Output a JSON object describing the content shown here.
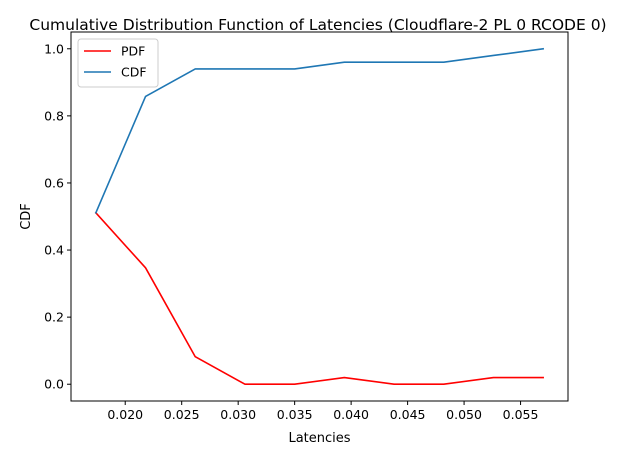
{
  "chart_data": {
    "type": "line",
    "title": "Cumulative Distribution Function of Latencies (Cloudflare-2 PL 0 RCODE 0)",
    "xlabel": "Latencies",
    "ylabel": "CDF",
    "xlim": [
      0.0152,
      0.0592
    ],
    "ylim": [
      -0.05,
      1.05
    ],
    "xticks": [
      0.02,
      0.025,
      0.03,
      0.035,
      0.04,
      0.045,
      0.05,
      0.055
    ],
    "xtick_labels": [
      "0.020",
      "0.025",
      "0.030",
      "0.035",
      "0.040",
      "0.045",
      "0.050",
      "0.055"
    ],
    "yticks": [
      0.0,
      0.2,
      0.4,
      0.6,
      0.8,
      1.0
    ],
    "ytick_labels": [
      "0.0",
      "0.2",
      "0.4",
      "0.6",
      "0.8",
      "1.0"
    ],
    "grid": false,
    "legend_position": "top-left",
    "x": [
      0.0174,
      0.0218,
      0.0262,
      0.0306,
      0.035,
      0.0394,
      0.0438,
      0.0482,
      0.0526,
      0.057
    ],
    "series": [
      {
        "name": "PDF",
        "color": "#ff0000",
        "values": [
          0.511,
          0.347,
          0.082,
          0.0,
          0.0,
          0.02,
          0.0,
          0.0,
          0.02,
          0.02
        ]
      },
      {
        "name": "CDF",
        "color": "#1f77b4",
        "values": [
          0.511,
          0.858,
          0.94,
          0.94,
          0.94,
          0.96,
          0.96,
          0.96,
          0.98,
          1.0
        ]
      }
    ]
  }
}
